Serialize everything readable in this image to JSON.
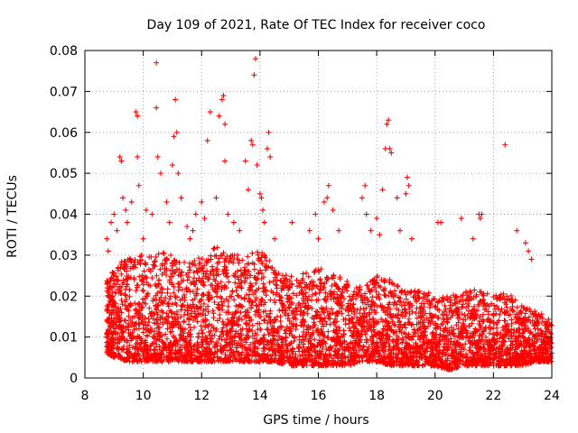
{
  "chart_data": {
    "type": "scatter",
    "title": "Day 109 of 2021, Rate Of TEC Index for receiver coco",
    "xlabel": "GPS time / hours",
    "ylabel": "ROTI / TECUs",
    "xlim": [
      8,
      24
    ],
    "ylim": [
      0,
      0.08
    ],
    "xticks": [
      8,
      10,
      12,
      14,
      16,
      18,
      20,
      22,
      24
    ],
    "xtick_labels": [
      "8",
      "10",
      "12",
      "14",
      "16",
      "18",
      "20",
      "22",
      "24"
    ],
    "yticks": [
      0,
      0.01,
      0.02,
      0.03,
      0.04,
      0.05,
      0.06,
      0.07,
      0.08
    ],
    "ytick_labels": [
      "0",
      "0.01",
      "0.02",
      "0.03",
      "0.04",
      "0.05",
      "0.06",
      "0.07",
      "0.08"
    ],
    "grid": true,
    "marker": "plus",
    "color": "#ff0000",
    "series": [
      {
        "name": "ROTI",
        "points": [
          [
            8.75,
            0.034
          ],
          [
            8.8,
            0.031
          ],
          [
            8.9,
            0.038
          ],
          [
            9.0,
            0.04
          ],
          [
            9.1,
            0.036
          ],
          [
            9.2,
            0.054
          ],
          [
            9.25,
            0.053
          ],
          [
            9.3,
            0.044
          ],
          [
            9.4,
            0.041
          ],
          [
            9.45,
            0.038
          ],
          [
            9.6,
            0.043
          ],
          [
            9.75,
            0.065
          ],
          [
            9.8,
            0.064
          ],
          [
            9.85,
            0.047
          ],
          [
            9.8,
            0.054
          ],
          [
            10.0,
            0.034
          ],
          [
            10.1,
            0.041
          ],
          [
            10.3,
            0.04
          ],
          [
            10.45,
            0.077
          ],
          [
            10.45,
            0.066
          ],
          [
            10.5,
            0.054
          ],
          [
            10.6,
            0.05
          ],
          [
            10.8,
            0.043
          ],
          [
            10.9,
            0.038
          ],
          [
            11.0,
            0.052
          ],
          [
            11.05,
            0.059
          ],
          [
            11.1,
            0.068
          ],
          [
            11.15,
            0.06
          ],
          [
            11.2,
            0.05
          ],
          [
            11.3,
            0.044
          ],
          [
            11.5,
            0.037
          ],
          [
            11.6,
            0.034
          ],
          [
            11.7,
            0.036
          ],
          [
            11.8,
            0.04
          ],
          [
            12.0,
            0.043
          ],
          [
            12.1,
            0.039
          ],
          [
            12.2,
            0.058
          ],
          [
            12.3,
            0.065
          ],
          [
            12.5,
            0.044
          ],
          [
            12.6,
            0.064
          ],
          [
            12.7,
            0.068
          ],
          [
            12.75,
            0.069
          ],
          [
            12.8,
            0.062
          ],
          [
            12.8,
            0.053
          ],
          [
            12.9,
            0.04
          ],
          [
            13.1,
            0.038
          ],
          [
            13.3,
            0.036
          ],
          [
            13.5,
            0.053
          ],
          [
            13.6,
            0.046
          ],
          [
            13.7,
            0.058
          ],
          [
            13.75,
            0.057
          ],
          [
            13.8,
            0.074
          ],
          [
            13.85,
            0.078
          ],
          [
            13.9,
            0.052
          ],
          [
            14.0,
            0.045
          ],
          [
            14.05,
            0.044
          ],
          [
            14.1,
            0.041
          ],
          [
            14.15,
            0.038
          ],
          [
            14.25,
            0.056
          ],
          [
            14.3,
            0.06
          ],
          [
            14.35,
            0.054
          ],
          [
            14.5,
            0.034
          ],
          [
            15.1,
            0.038
          ],
          [
            15.7,
            0.036
          ],
          [
            15.9,
            0.04
          ],
          [
            16.0,
            0.034
          ],
          [
            16.2,
            0.043
          ],
          [
            16.3,
            0.044
          ],
          [
            16.35,
            0.047
          ],
          [
            16.5,
            0.041
          ],
          [
            16.7,
            0.036
          ],
          [
            17.5,
            0.044
          ],
          [
            17.6,
            0.047
          ],
          [
            17.65,
            0.04
          ],
          [
            17.8,
            0.036
          ],
          [
            18.0,
            0.039
          ],
          [
            18.1,
            0.035
          ],
          [
            18.2,
            0.046
          ],
          [
            18.3,
            0.056
          ],
          [
            18.35,
            0.062
          ],
          [
            18.4,
            0.063
          ],
          [
            18.45,
            0.056
          ],
          [
            18.5,
            0.055
          ],
          [
            18.7,
            0.044
          ],
          [
            18.8,
            0.036
          ],
          [
            19.0,
            0.045
          ],
          [
            19.05,
            0.049
          ],
          [
            19.1,
            0.047
          ],
          [
            19.2,
            0.034
          ],
          [
            20.1,
            0.038
          ],
          [
            20.2,
            0.038
          ],
          [
            20.9,
            0.039
          ],
          [
            21.3,
            0.034
          ],
          [
            21.5,
            0.04
          ],
          [
            21.55,
            0.039
          ],
          [
            21.6,
            0.04
          ],
          [
            22.4,
            0.057
          ],
          [
            22.8,
            0.036
          ],
          [
            23.1,
            0.033
          ],
          [
            23.2,
            0.031
          ],
          [
            23.3,
            0.029
          ]
        ],
        "band": {
          "note": "dense cloud of points between 8.75 and 24 h",
          "bins": [
            [
              8.75,
              0.006,
              0.024
            ],
            [
              9.0,
              0.005,
              0.027
            ],
            [
              9.5,
              0.004,
              0.03
            ],
            [
              10.0,
              0.004,
              0.03
            ],
            [
              10.5,
              0.004,
              0.031
            ],
            [
              11.0,
              0.004,
              0.03
            ],
            [
              11.5,
              0.004,
              0.028
            ],
            [
              12.0,
              0.004,
              0.03
            ],
            [
              12.5,
              0.004,
              0.032
            ],
            [
              13.0,
              0.004,
              0.031
            ],
            [
              13.5,
              0.004,
              0.03
            ],
            [
              14.0,
              0.004,
              0.032
            ],
            [
              14.5,
              0.004,
              0.027
            ],
            [
              15.0,
              0.003,
              0.025
            ],
            [
              15.5,
              0.003,
              0.026
            ],
            [
              16.0,
              0.003,
              0.027
            ],
            [
              16.5,
              0.003,
              0.026
            ],
            [
              17.0,
              0.003,
              0.024
            ],
            [
              17.5,
              0.004,
              0.022
            ],
            [
              18.0,
              0.004,
              0.025
            ],
            [
              18.5,
              0.003,
              0.024
            ],
            [
              19.0,
              0.003,
              0.021
            ],
            [
              19.5,
              0.003,
              0.022
            ],
            [
              20.0,
              0.003,
              0.02
            ],
            [
              20.5,
              0.002,
              0.02
            ],
            [
              21.0,
              0.003,
              0.021
            ],
            [
              21.5,
              0.003,
              0.022
            ],
            [
              22.0,
              0.003,
              0.02
            ],
            [
              22.5,
              0.003,
              0.021
            ],
            [
              23.0,
              0.003,
              0.018
            ],
            [
              23.5,
              0.004,
              0.016
            ],
            [
              24.0,
              0.004,
              0.015
            ]
          ]
        }
      }
    ]
  }
}
